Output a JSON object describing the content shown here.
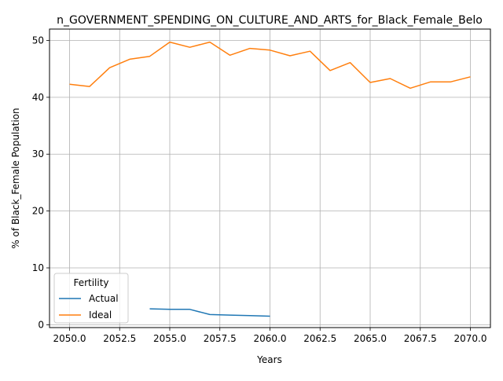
{
  "chart_data": {
    "type": "line",
    "title": "n_GOVERNMENT_SPENDING_ON_CULTURE_AND_ARTS_for_Black_Female_Belo",
    "xlabel": "Years",
    "ylabel": "% of Black_Female Population",
    "xlim": [
      2049,
      2071
    ],
    "ylim": [
      -0.5,
      52
    ],
    "xticks": [
      2050.0,
      2052.5,
      2055.0,
      2057.5,
      2060.0,
      2062.5,
      2065.0,
      2067.5,
      2070.0
    ],
    "xtick_labels": [
      "2050.0",
      "2052.5",
      "2055.0",
      "2057.5",
      "2060.0",
      "2062.5",
      "2065.0",
      "2067.5",
      "2070.0"
    ],
    "yticks": [
      0,
      10,
      20,
      30,
      40,
      50
    ],
    "ytick_labels": [
      "0",
      "10",
      "20",
      "30",
      "40",
      "50"
    ],
    "grid": true,
    "legend": {
      "title": "Fertility",
      "placement": "lower-left"
    },
    "series": [
      {
        "name": "Actual",
        "color": "#1f77b4",
        "x": [
          2054,
          2055,
          2056,
          2057,
          2058,
          2059,
          2060
        ],
        "y": [
          2.8,
          2.7,
          2.7,
          1.8,
          1.7,
          1.6,
          1.5
        ]
      },
      {
        "name": "Ideal",
        "color": "#ff7f0e",
        "x": [
          2050,
          2051,
          2052,
          2053,
          2054,
          2055,
          2056,
          2057,
          2058,
          2059,
          2060,
          2061,
          2062,
          2063,
          2064,
          2065,
          2066,
          2067,
          2068,
          2069,
          2070
        ],
        "y": [
          42.3,
          41.9,
          45.2,
          46.7,
          47.2,
          49.7,
          48.8,
          49.7,
          47.4,
          48.6,
          48.3,
          47.3,
          48.1,
          44.7,
          46.1,
          42.6,
          43.3,
          41.6,
          42.7,
          42.7,
          43.6
        ]
      }
    ]
  }
}
